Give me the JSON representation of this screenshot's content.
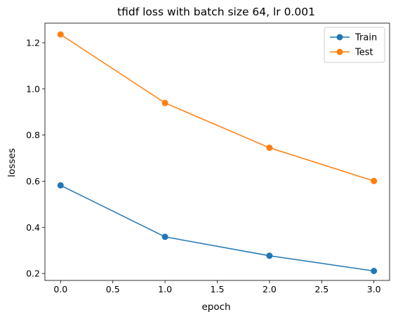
{
  "chart_data": {
    "type": "line",
    "title": "tfidf loss with batch size 64, lr 0.001",
    "xlabel": "epoch",
    "ylabel": "losses",
    "xlim": [
      -0.15,
      3.15
    ],
    "ylim": [
      0.17,
      1.285
    ],
    "x": [
      0,
      1,
      2,
      3
    ],
    "xticks": [
      0.0,
      0.5,
      1.0,
      1.5,
      2.0,
      2.5,
      3.0
    ],
    "xtick_labels": [
      "0.0",
      "0.5",
      "1.0",
      "1.5",
      "2.0",
      "2.5",
      "3.0"
    ],
    "yticks": [
      0.2,
      0.4,
      0.6,
      0.8,
      1.0,
      1.2
    ],
    "ytick_labels": [
      "0.2",
      "0.4",
      "0.6",
      "0.8",
      "1.0",
      "1.2"
    ],
    "grid": false,
    "legend": "top-right",
    "series": [
      {
        "name": "Train",
        "color": "#1f77b4",
        "marker": "circle",
        "values": [
          0.582,
          0.359,
          0.277,
          0.211
        ]
      },
      {
        "name": "Test",
        "color": "#ff7f0e",
        "marker": "circle",
        "values": [
          1.236,
          0.939,
          0.745,
          0.601
        ]
      }
    ]
  }
}
